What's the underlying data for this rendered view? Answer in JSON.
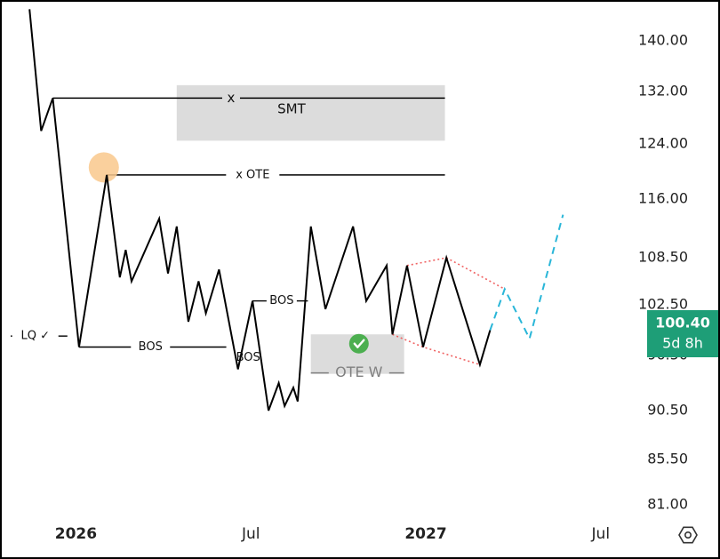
{
  "chart_data": {
    "type": "line",
    "title": "",
    "x_ticks": [
      {
        "label": "2026",
        "t": 0.5,
        "bold": true
      },
      {
        "label": "Jul",
        "t": 6.5,
        "bold": false
      },
      {
        "label": "2027",
        "t": 12.5,
        "bold": true
      },
      {
        "label": "Jul",
        "t": 18.5,
        "bold": false
      }
    ],
    "y_ticks": [
      "140.00",
      "132.00",
      "124.00",
      "116.00",
      "108.50",
      "102.50",
      "96.50",
      "90.50",
      "85.50",
      "81.00"
    ],
    "price_series": [
      [
        -1.55,
        145.0
      ],
      [
        -1.15,
        126.0
      ],
      [
        -0.75,
        131.0
      ],
      [
        0.15,
        97.5
      ],
      [
        1.1,
        119.5
      ],
      [
        1.55,
        106.0
      ],
      [
        1.75,
        109.5
      ],
      [
        1.95,
        105.5
      ],
      [
        2.9,
        113.5
      ],
      [
        3.2,
        106.5
      ],
      [
        3.5,
        112.5
      ],
      [
        3.9,
        100.5
      ],
      [
        4.25,
        105.5
      ],
      [
        4.5,
        101.5
      ],
      [
        4.95,
        107.0
      ],
      [
        5.6,
        95.0
      ],
      [
        6.1,
        103.0
      ],
      [
        6.65,
        90.5
      ],
      [
        7.0,
        93.5
      ],
      [
        7.2,
        91.0
      ],
      [
        7.5,
        93.0
      ],
      [
        7.65,
        91.5
      ],
      [
        8.1,
        112.5
      ],
      [
        8.6,
        102.0
      ],
      [
        9.55,
        112.5
      ],
      [
        10.0,
        103.0
      ],
      [
        10.7,
        107.5
      ],
      [
        10.9,
        99.0
      ],
      [
        11.4,
        107.5
      ],
      [
        11.95,
        97.5
      ],
      [
        12.75,
        108.5
      ],
      [
        13.9,
        95.5
      ],
      [
        14.25,
        99.5
      ]
    ],
    "projection_series": [
      [
        14.25,
        99.5
      ],
      [
        14.75,
        104.5
      ],
      [
        15.6,
        98.5
      ],
      [
        16.75,
        114.0
      ]
    ],
    "pattern_upper": [
      [
        11.4,
        107.5
      ],
      [
        12.75,
        108.5
      ],
      [
        14.75,
        104.5
      ]
    ],
    "pattern_lower": [
      [
        10.9,
        99.0
      ],
      [
        11.95,
        97.5
      ],
      [
        13.9,
        95.5
      ]
    ],
    "last_price": {
      "value": "100.40",
      "countdown": "5d 8h"
    },
    "colors": {
      "price": "#000000",
      "projection": "#29b6d8",
      "pattern": "#f06262",
      "price_tag": "#1e9e77",
      "zone": "#dcdcdc",
      "highlight": "#f9c88c"
    },
    "annotations": {
      "lq": "LQ ✓",
      "bos_1": "BOS",
      "bos_2": "BOS",
      "bos_3": "BOS",
      "smt_x": "x",
      "smt": "SMT",
      "ote": "x OTE",
      "ote_w": "OTE W"
    },
    "levels": {
      "smt_line": 131.0,
      "ote_line": 119.5,
      "bos_1_line": 97.5,
      "bos_3_line": 103.0
    },
    "zones": {
      "smt": {
        "t_start": 3.5,
        "t_end": 12.7,
        "y_top": 133.0,
        "y_bottom": 124.5
      },
      "ote_w": {
        "t_start": 8.1,
        "t_end": 11.3,
        "y_top": 99.0,
        "y_bottom": 94.5
      }
    },
    "grid": false,
    "legend": "none"
  }
}
